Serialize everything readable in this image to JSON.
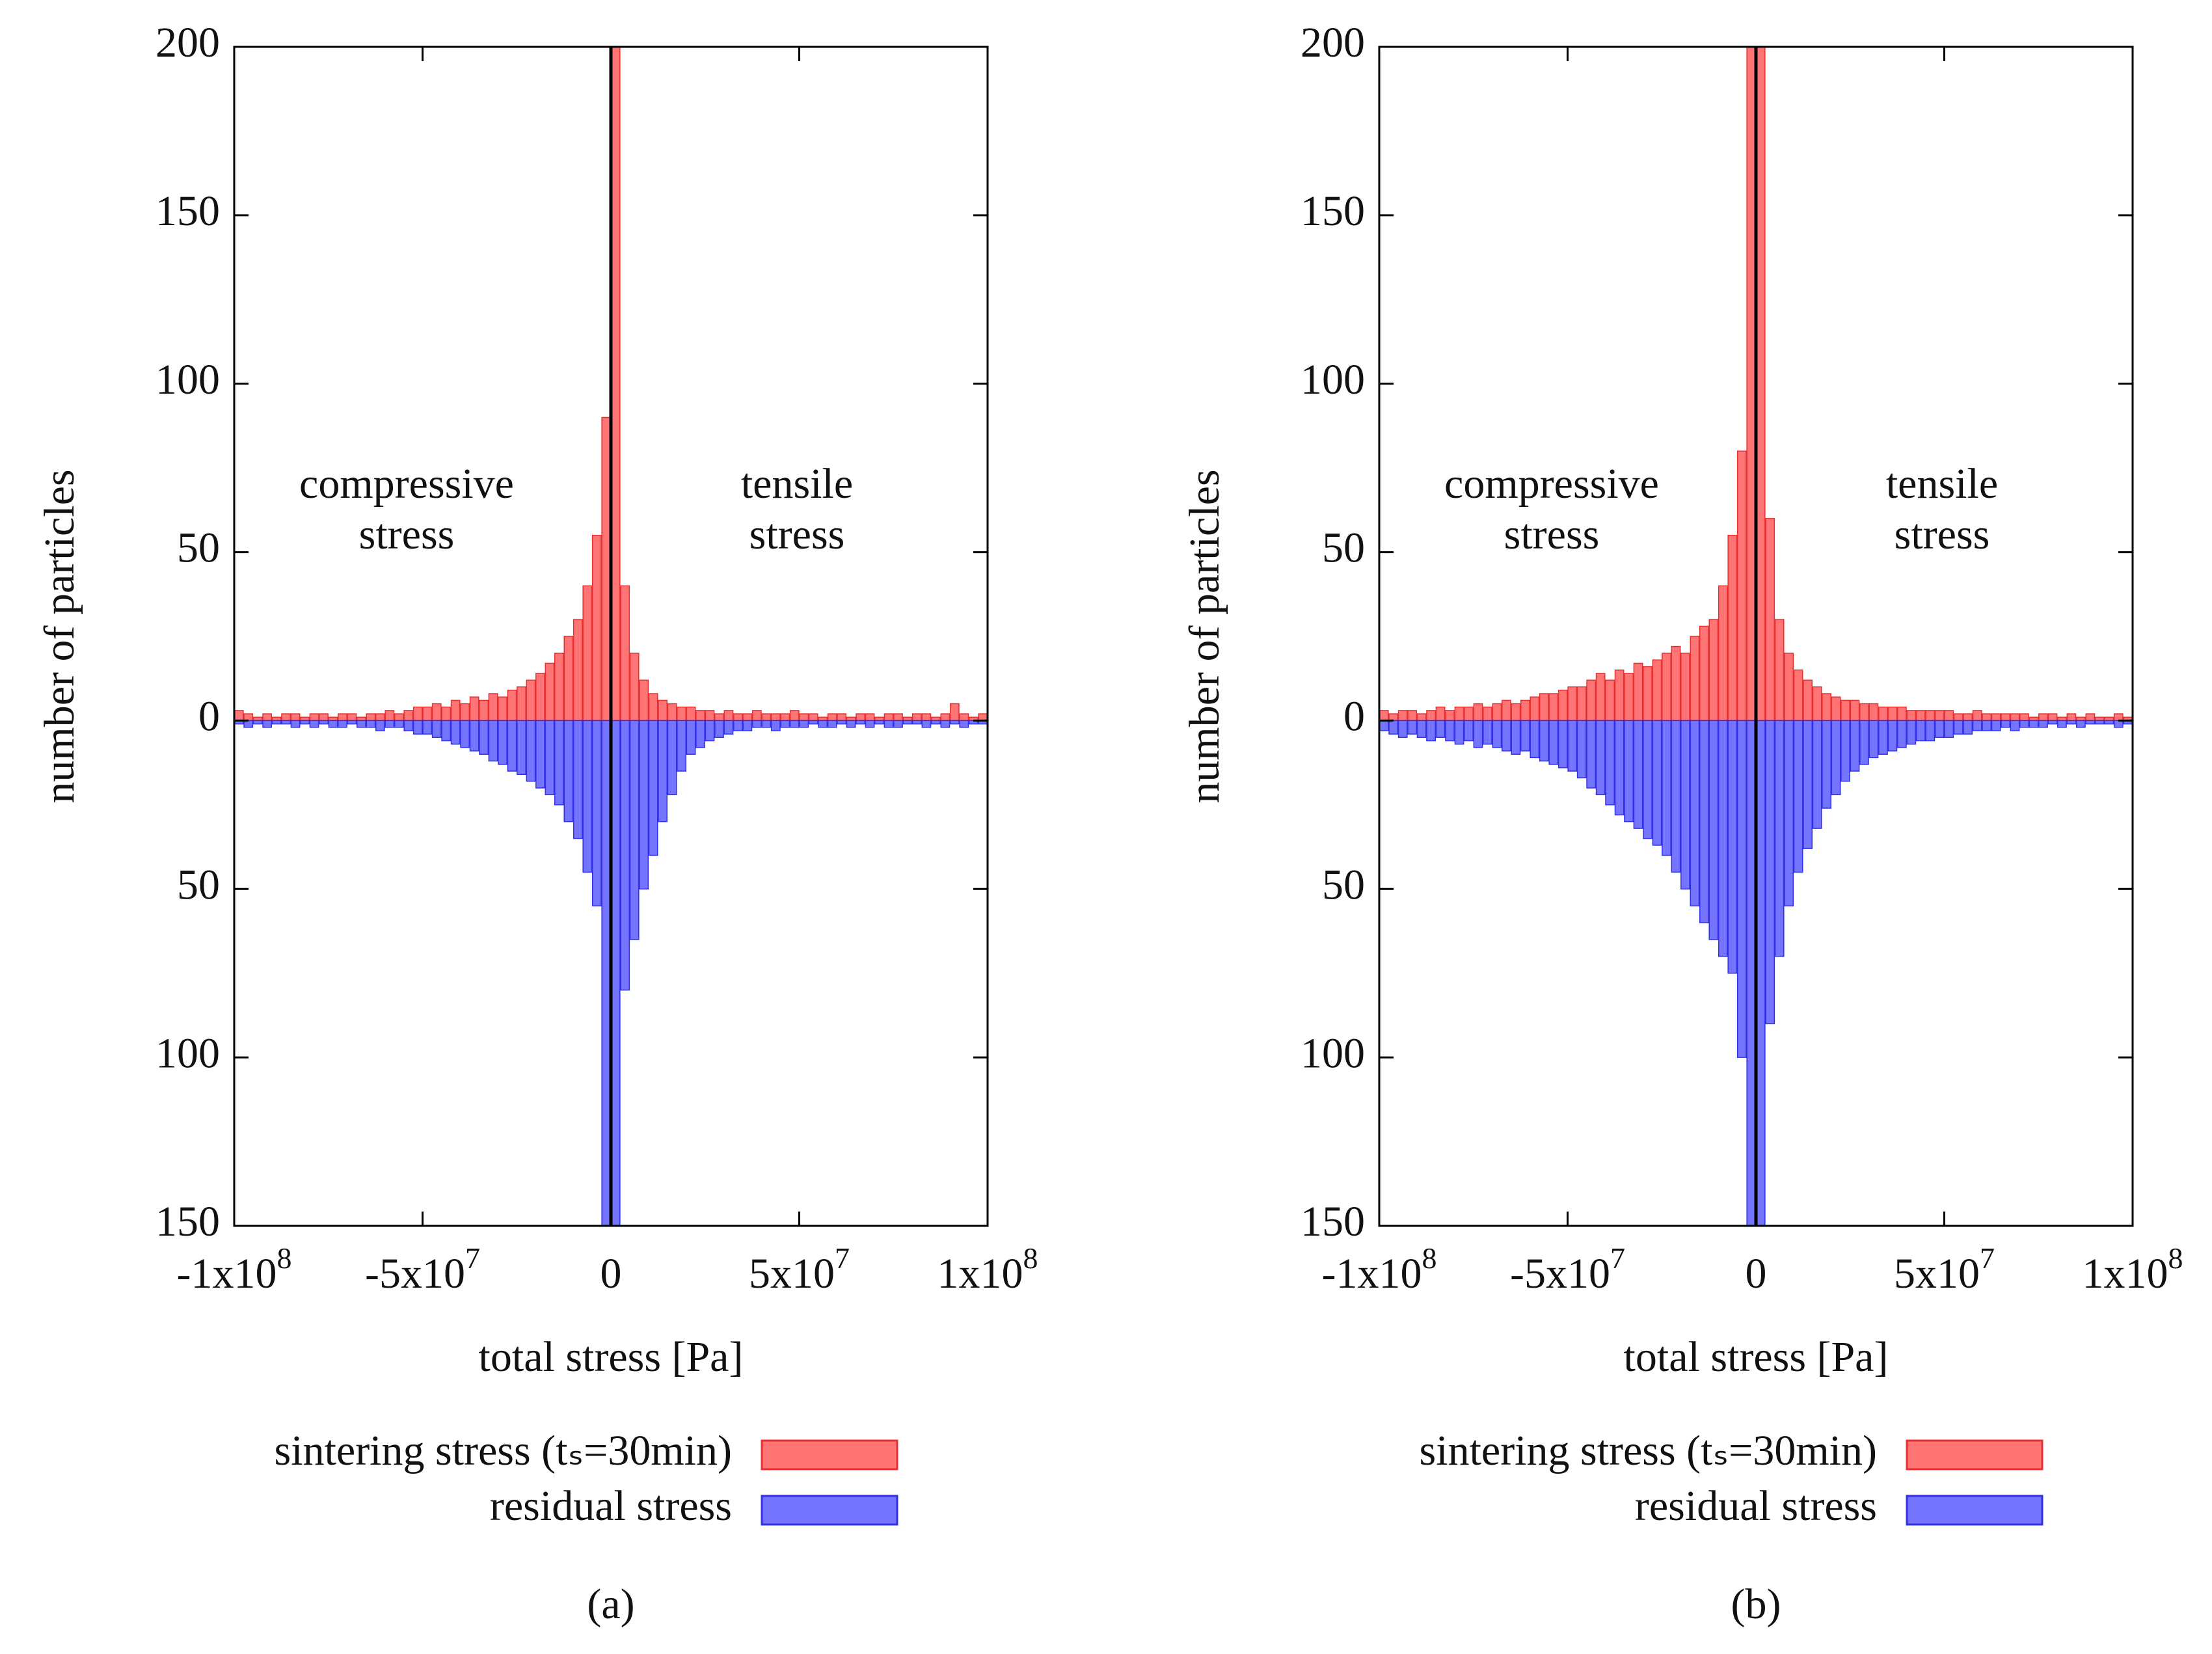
{
  "chart_data": [
    {
      "type": "histogram",
      "panel_label": "(a)",
      "x_label": "total stress [Pa]",
      "y_label": "number of particles",
      "annotations": [
        [
          "compressive",
          "stress"
        ],
        [
          "tensile",
          "stress"
        ]
      ],
      "xlim": [
        -100000000.0,
        100000000.0
      ],
      "ylim": [
        -150,
        200
      ],
      "xticks": [
        {
          "value": -100000000.0,
          "label": "-1x10",
          "exponent": "8"
        },
        {
          "value": -50000000.0,
          "label": "-5x10",
          "exponent": "7"
        },
        0,
        {
          "value": 50000000.0,
          "label": "5x10",
          "exponent": "7"
        },
        {
          "value": 100000000.0,
          "label": "1x10",
          "exponent": "8"
        }
      ],
      "yticks": [
        {
          "value": -150,
          "label": "150"
        },
        {
          "value": -100,
          "label": "100"
        },
        {
          "value": -50,
          "label": "50"
        },
        0,
        50,
        100,
        150,
        200
      ],
      "vline": 0,
      "bins": [
        -100000000.0,
        -97500000.0,
        -95000000.0,
        -92500000.0,
        -90000000.0,
        -87500000.0,
        -85000000.0,
        -82500000.0,
        -80000000.0,
        -77500000.0,
        -75000000.0,
        -72500000.0,
        -70000000.0,
        -67500000.0,
        -65000000.0,
        -62500000.0,
        -60000000.0,
        -57500000.0,
        -55000000.0,
        -52500000.0,
        -50000000.0,
        -47500000.0,
        -45000000.0,
        -42500000.0,
        -40000000.0,
        -37500000.0,
        -35000000.0,
        -32500000.0,
        -30000000.0,
        -27500000.0,
        -25000000.0,
        -22500000.0,
        -20000000.0,
        -17500000.0,
        -15000000.0,
        -12500000.0,
        -10000000.0,
        -7500000.0,
        -5000000.0,
        -2500000.0,
        0,
        2500000.0,
        5000000.0,
        7500000.0,
        10000000.0,
        12500000.0,
        15000000.0,
        17500000.0,
        20000000.0,
        22500000.0,
        25000000.0,
        27500000.0,
        30000000.0,
        32500000.0,
        35000000.0,
        37500000.0,
        40000000.0,
        42500000.0,
        45000000.0,
        47500000.0,
        50000000.0,
        52500000.0,
        55000000.0,
        57500000.0,
        60000000.0,
        62500000.0,
        65000000.0,
        67500000.0,
        70000000.0,
        72500000.0,
        75000000.0,
        77500000.0,
        80000000.0,
        82500000.0,
        85000000.0,
        87500000.0,
        90000000.0,
        92500000.0,
        95000000.0,
        97500000.0,
        100000000.0
      ],
      "series": [
        {
          "name": "sintering stress (tₛ=30min)",
          "color": "#ff7474",
          "edge": "#e83030",
          "values": [
            3,
            2,
            1,
            2,
            1,
            2,
            2,
            1,
            2,
            2,
            1,
            2,
            2,
            1,
            2,
            2,
            3,
            2,
            3,
            4,
            4,
            5,
            4,
            6,
            5,
            7,
            6,
            8,
            7,
            9,
            10,
            12,
            14,
            17,
            20,
            25,
            30,
            40,
            55,
            90,
            200,
            40,
            20,
            12,
            8,
            6,
            5,
            4,
            4,
            3,
            3,
            2,
            3,
            2,
            2,
            3,
            2,
            2,
            2,
            3,
            2,
            2,
            1,
            2,
            2,
            1,
            2,
            2,
            1,
            2,
            2,
            1,
            2,
            2,
            1,
            2,
            5,
            2,
            1,
            2
          ]
        },
        {
          "name": "residual stress",
          "color": "#7474ff",
          "edge": "#3030e8",
          "values": [
            -1,
            -2,
            -1,
            -2,
            -1,
            -1,
            -2,
            -1,
            -2,
            -1,
            -2,
            -2,
            -1,
            -2,
            -2,
            -3,
            -2,
            -2,
            -3,
            -4,
            -4,
            -5,
            -6,
            -7,
            -8,
            -9,
            -10,
            -12,
            -13,
            -15,
            -16,
            -18,
            -20,
            -22,
            -25,
            -30,
            -35,
            -45,
            -55,
            -150,
            -150,
            -80,
            -65,
            -50,
            -40,
            -30,
            -22,
            -15,
            -10,
            -8,
            -6,
            -5,
            -4,
            -3,
            -3,
            -2,
            -2,
            -3,
            -2,
            -2,
            -2,
            -1,
            -2,
            -2,
            -1,
            -2,
            -1,
            -2,
            -1,
            -2,
            -2,
            -1,
            -1,
            -2,
            -1,
            -2,
            -1,
            -2,
            -1,
            -1
          ]
        }
      ]
    },
    {
      "type": "histogram",
      "panel_label": "(b)",
      "x_label": "total stress [Pa]",
      "y_label": "number of particles",
      "annotations": [
        [
          "compressive",
          "stress"
        ],
        [
          "tensile",
          "stress"
        ]
      ],
      "xlim": [
        -100000000.0,
        100000000.0
      ],
      "ylim": [
        -150,
        200
      ],
      "xticks": [
        {
          "value": -100000000.0,
          "label": "-1x10",
          "exponent": "8"
        },
        {
          "value": -50000000.0,
          "label": "-5x10",
          "exponent": "7"
        },
        0,
        {
          "value": 50000000.0,
          "label": "5x10",
          "exponent": "7"
        },
        {
          "value": 100000000.0,
          "label": "1x10",
          "exponent": "8"
        }
      ],
      "yticks": [
        {
          "value": -150,
          "label": "150"
        },
        {
          "value": -100,
          "label": "100"
        },
        {
          "value": -50,
          "label": "50"
        },
        0,
        50,
        100,
        150,
        200
      ],
      "vline": 0,
      "bins": [
        -100000000.0,
        -97500000.0,
        -95000000.0,
        -92500000.0,
        -90000000.0,
        -87500000.0,
        -85000000.0,
        -82500000.0,
        -80000000.0,
        -77500000.0,
        -75000000.0,
        -72500000.0,
        -70000000.0,
        -67500000.0,
        -65000000.0,
        -62500000.0,
        -60000000.0,
        -57500000.0,
        -55000000.0,
        -52500000.0,
        -50000000.0,
        -47500000.0,
        -45000000.0,
        -42500000.0,
        -40000000.0,
        -37500000.0,
        -35000000.0,
        -32500000.0,
        -30000000.0,
        -27500000.0,
        -25000000.0,
        -22500000.0,
        -20000000.0,
        -17500000.0,
        -15000000.0,
        -12500000.0,
        -10000000.0,
        -7500000.0,
        -5000000.0,
        -2500000.0,
        0,
        2500000.0,
        5000000.0,
        7500000.0,
        10000000.0,
        12500000.0,
        15000000.0,
        17500000.0,
        20000000.0,
        22500000.0,
        25000000.0,
        27500000.0,
        30000000.0,
        32500000.0,
        35000000.0,
        37500000.0,
        40000000.0,
        42500000.0,
        45000000.0,
        47500000.0,
        50000000.0,
        52500000.0,
        55000000.0,
        57500000.0,
        60000000.0,
        62500000.0,
        65000000.0,
        67500000.0,
        70000000.0,
        72500000.0,
        75000000.0,
        77500000.0,
        80000000.0,
        82500000.0,
        85000000.0,
        87500000.0,
        90000000.0,
        92500000.0,
        95000000.0,
        97500000.0,
        100000000.0
      ],
      "series": [
        {
          "name": "sintering stress (tₛ=30min)",
          "color": "#ff7474",
          "edge": "#e83030",
          "values": [
            3,
            2,
            3,
            3,
            2,
            3,
            4,
            3,
            4,
            4,
            5,
            4,
            5,
            6,
            5,
            6,
            7,
            8,
            8,
            9,
            10,
            10,
            12,
            14,
            12,
            15,
            14,
            17,
            16,
            18,
            20,
            22,
            20,
            25,
            28,
            30,
            40,
            55,
            80,
            200,
            200,
            60,
            30,
            20,
            15,
            12,
            10,
            8,
            7,
            6,
            6,
            5,
            5,
            4,
            4,
            4,
            3,
            3,
            3,
            3,
            3,
            2,
            2,
            3,
            2,
            2,
            2,
            2,
            2,
            1,
            2,
            2,
            1,
            2,
            1,
            2,
            1,
            1,
            2,
            1
          ]
        },
        {
          "name": "residual stress",
          "color": "#7474ff",
          "edge": "#3030e8",
          "values": [
            -3,
            -4,
            -5,
            -4,
            -5,
            -6,
            -5,
            -6,
            -7,
            -6,
            -8,
            -7,
            -8,
            -9,
            -10,
            -9,
            -11,
            -12,
            -13,
            -14,
            -15,
            -17,
            -20,
            -22,
            -25,
            -28,
            -30,
            -32,
            -35,
            -37,
            -40,
            -45,
            -50,
            -55,
            -60,
            -65,
            -70,
            -75,
            -100,
            -150,
            -150,
            -90,
            -70,
            -55,
            -45,
            -38,
            -32,
            -26,
            -22,
            -18,
            -15,
            -13,
            -11,
            -10,
            -9,
            -8,
            -7,
            -6,
            -6,
            -5,
            -5,
            -4,
            -4,
            -3,
            -3,
            -3,
            -2,
            -3,
            -2,
            -2,
            -2,
            -1,
            -2,
            -1,
            -2,
            -1,
            -1,
            -1,
            -2,
            -1
          ]
        }
      ]
    }
  ]
}
